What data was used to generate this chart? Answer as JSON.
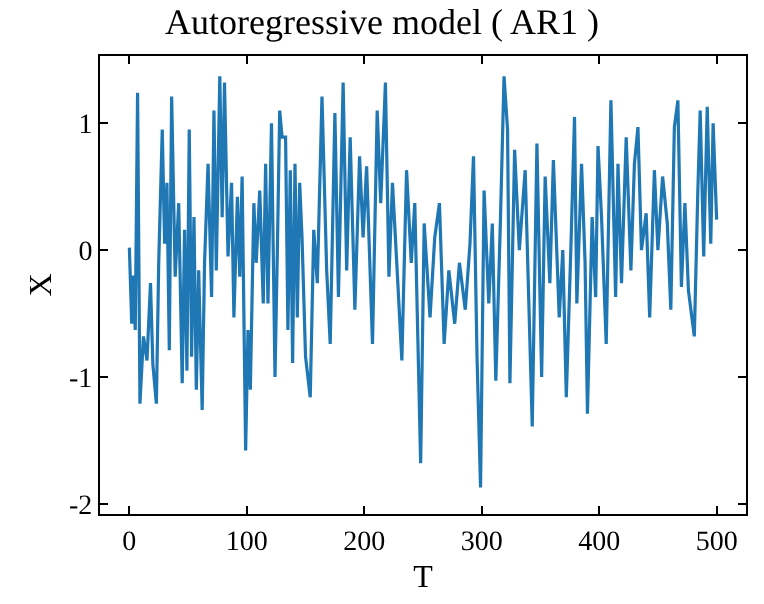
{
  "chart_data": {
    "type": "line",
    "title": "Autoregressive model ( AR1 )",
    "xlabel": "T",
    "ylabel": "X",
    "x": [
      0,
      2,
      3,
      5,
      7,
      9,
      12,
      15,
      18,
      20,
      23,
      25,
      28,
      30,
      32,
      34,
      36,
      39,
      42,
      45,
      47,
      49,
      51,
      53,
      55,
      57,
      59,
      62,
      64,
      67,
      70,
      72,
      74,
      77,
      79,
      81,
      84,
      87,
      89,
      92,
      94,
      96,
      99,
      101,
      103,
      106,
      108,
      111,
      114,
      116,
      118,
      121,
      124,
      126,
      128,
      130,
      133,
      135,
      137,
      139,
      141,
      143,
      145,
      147,
      150,
      154,
      157,
      160,
      164,
      168,
      171,
      175,
      178,
      182,
      185,
      188,
      192,
      196,
      199,
      202,
      207,
      211,
      214,
      218,
      221,
      224,
      228,
      232,
      236,
      240,
      243,
      248,
      251,
      256,
      260,
      264,
      268,
      272,
      277,
      281,
      286,
      290,
      293,
      296,
      299,
      302,
      306,
      309,
      312,
      316,
      319,
      322,
      324,
      328,
      332,
      337,
      343,
      347,
      351,
      354,
      358,
      361,
      366,
      369,
      372,
      376,
      379,
      381,
      385,
      388,
      390,
      394,
      397,
      399,
      402,
      406,
      410,
      414,
      416,
      419,
      423,
      427,
      430,
      433,
      436,
      440,
      443,
      447,
      450,
      454,
      458,
      461,
      464,
      467,
      470,
      473,
      476,
      481,
      484,
      486,
      489,
      492,
      495,
      497,
      500
    ],
    "series": [
      {
        "color": "#1f77b4",
        "values": [
          0.02,
          -0.58,
          -0.2,
          -0.63,
          1.24,
          -1.21,
          -0.68,
          -0.87,
          -0.26,
          -0.9,
          -1.21,
          -0.1,
          0.95,
          0.05,
          0.53,
          -0.79,
          1.21,
          -0.21,
          0.37,
          -1.05,
          0.16,
          -0.95,
          0.95,
          -0.84,
          0.26,
          -1.1,
          -0.16,
          -1.26,
          -0.1,
          0.68,
          -0.37,
          1.1,
          -0.16,
          1.37,
          0.26,
          1.32,
          -0.05,
          0.53,
          -0.53,
          0.42,
          -0.21,
          0.58,
          -1.58,
          -0.63,
          -1.1,
          0.37,
          -0.1,
          0.47,
          -0.42,
          0.68,
          -0.42,
          1.0,
          -1.0,
          0.0,
          1.1,
          0.89,
          0.89,
          -0.63,
          0.63,
          -0.89,
          0.68,
          -0.53,
          0.53,
          0.1,
          -0.84,
          -1.16,
          0.16,
          -0.26,
          1.21,
          -0.16,
          -0.74,
          1.08,
          -0.37,
          1.32,
          -0.16,
          0.89,
          -0.47,
          0.74,
          0.1,
          0.66,
          -0.74,
          1.1,
          0.37,
          1.32,
          -0.21,
          0.53,
          -0.16,
          -0.87,
          0.63,
          -0.1,
          0.37,
          -1.68,
          0.21,
          -0.53,
          0.1,
          0.37,
          -0.74,
          -0.16,
          -0.58,
          -0.1,
          -0.47,
          0.05,
          0.74,
          -0.84,
          -1.87,
          0.47,
          -0.42,
          0.21,
          -1.03,
          0.26,
          1.37,
          0.95,
          -1.05,
          0.79,
          0.0,
          0.63,
          -1.39,
          0.84,
          -1.0,
          0.58,
          -0.26,
          0.71,
          -0.53,
          0.0,
          -1.16,
          0.05,
          1.05,
          -0.42,
          0.68,
          -0.1,
          -1.29,
          0.26,
          -0.37,
          0.82,
          0.26,
          -0.74,
          1.18,
          -0.37,
          0.68,
          -0.26,
          0.89,
          -0.16,
          0.68,
          0.97,
          0.0,
          0.29,
          -0.53,
          0.63,
          0.0,
          0.58,
          0.21,
          -0.47,
          0.97,
          1.18,
          -0.29,
          0.37,
          -0.32,
          -0.68,
          0.47,
          1.1,
          -0.05,
          1.13,
          0.05,
          1.0,
          0.24
        ]
      }
    ],
    "xlim": [
      -25,
      525
    ],
    "xticks": [
      0,
      100,
      200,
      300,
      400,
      500
    ],
    "ylim": [
      -2.08,
      1.53
    ],
    "yticks": [
      -2,
      -1,
      0,
      1
    ]
  }
}
